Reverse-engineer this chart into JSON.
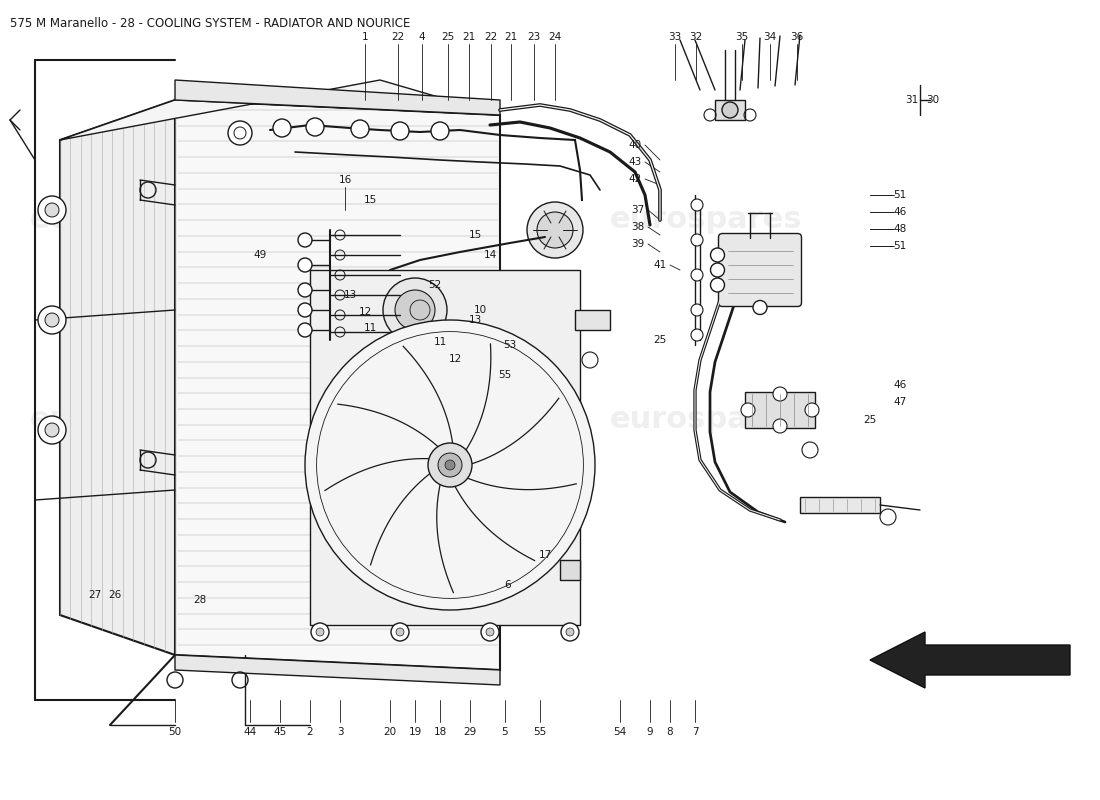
{
  "title": "575 M Maranello - 28 - COOLING SYSTEM - RADIATOR AND NOURICE",
  "title_fontsize": 8.5,
  "bg_color": "#ffffff",
  "line_color": "#1a1a1a",
  "watermark_color": "#cccccc",
  "label_fontsize": 7.5,
  "arrow_color": "#000000",
  "wm_alpha": 0.13,
  "wm_fontsize": 22
}
